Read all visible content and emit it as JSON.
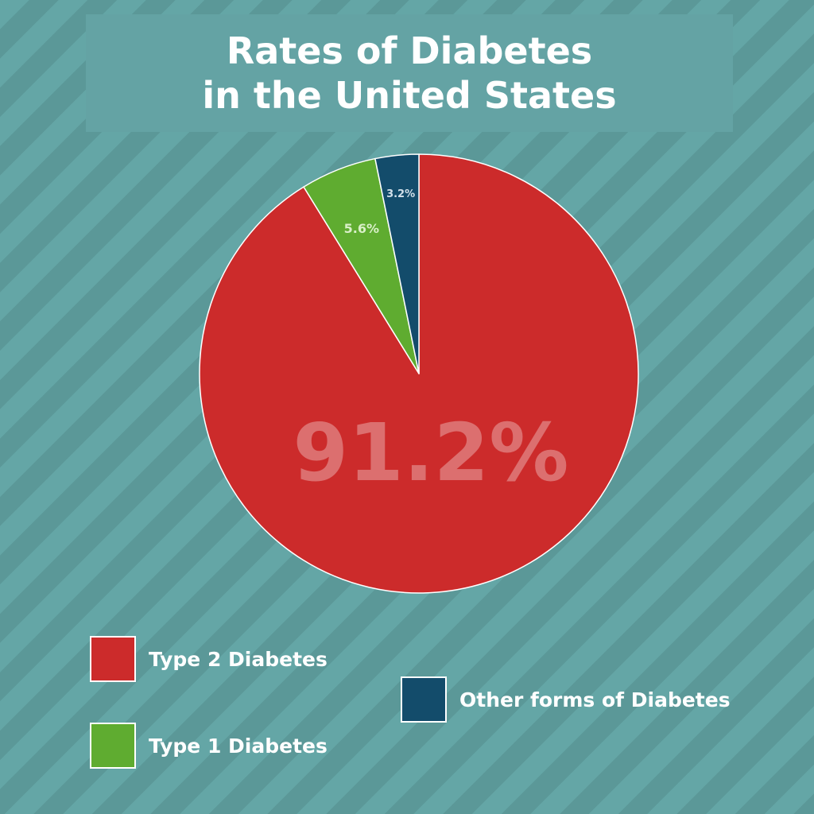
{
  "title": {
    "line1": "Rates of Diabetes",
    "line2": "in the United States"
  },
  "chart_data": {
    "type": "pie",
    "categories": [
      "Type 2 Diabetes",
      "Type 1 Diabetes",
      "Other forms of Diabetes"
    ],
    "values": [
      91.2,
      5.6,
      3.2
    ],
    "labels": [
      "91.2%",
      "5.6%",
      "3.2%"
    ],
    "colors": [
      "#cc2b2b",
      "#5fac30",
      "#134c6b"
    ],
    "legend": "bottom"
  },
  "legend": {
    "items": [
      {
        "label": "Type 2 Diabetes",
        "color": "#cc2b2b"
      },
      {
        "label": "Type 1 Diabetes",
        "color": "#5fac30"
      },
      {
        "label": "Other forms of Diabetes",
        "color": "#134c6b"
      }
    ]
  }
}
